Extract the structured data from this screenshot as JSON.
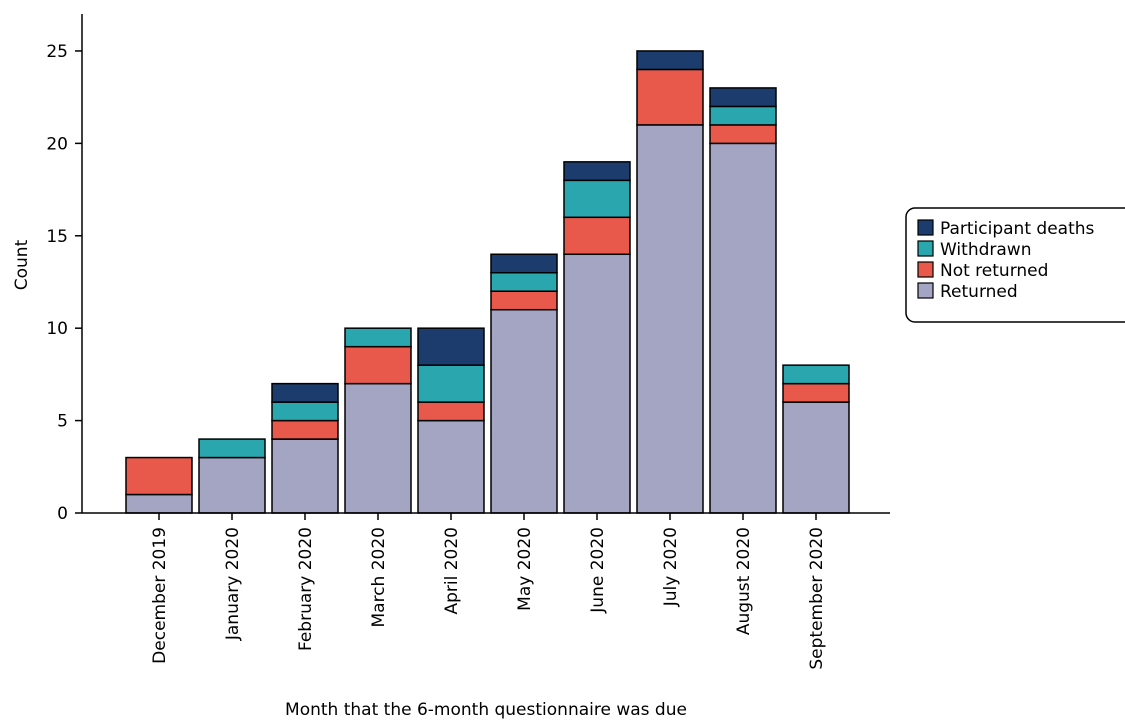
{
  "chart_data": {
    "type": "bar",
    "stacked": true,
    "xlabel": "Month that the 6-month questionnaire was due",
    "ylabel": "Count",
    "ylim": [
      0,
      27
    ],
    "yticks": [
      0,
      5,
      10,
      15,
      20,
      25
    ],
    "categories": [
      "December 2019",
      "January 2020",
      "February 2020",
      "March 2020",
      "April 2020",
      "May 2020",
      "June 2020",
      "July 2020",
      "August 2020",
      "September 2020"
    ],
    "series": [
      {
        "name": "Returned",
        "color": "#a3a5c3",
        "values": [
          1,
          3,
          4,
          7,
          5,
          11,
          14,
          21,
          20,
          6
        ]
      },
      {
        "name": "Not returned",
        "color": "#e8594c",
        "values": [
          2,
          0,
          1,
          2,
          1,
          1,
          2,
          3,
          1,
          1
        ]
      },
      {
        "name": "Withdrawn",
        "color": "#2aa7ae",
        "values": [
          0,
          1,
          1,
          1,
          2,
          1,
          2,
          0,
          1,
          1
        ]
      },
      {
        "name": "Participant deaths",
        "color": "#1d3c6e",
        "values": [
          0,
          0,
          1,
          0,
          2,
          1,
          1,
          1,
          1,
          0
        ]
      }
    ],
    "legend": {
      "position": "right",
      "order": [
        "Participant deaths",
        "Withdrawn",
        "Not returned",
        "Returned"
      ]
    },
    "grid": false
  }
}
